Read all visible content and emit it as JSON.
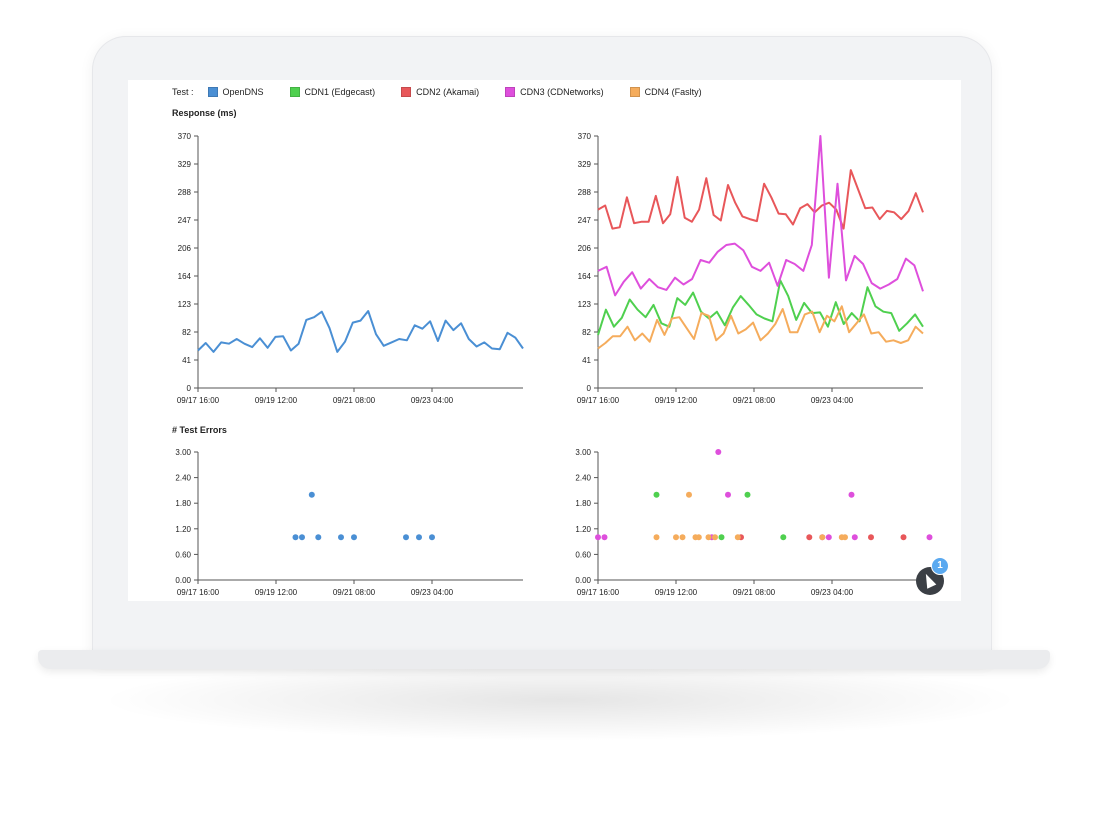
{
  "legend": {
    "label": "Test :",
    "items": [
      {
        "name": "OpenDNS",
        "color": "#4a8fd4"
      },
      {
        "name": "CDN1 (Edgecast)",
        "color": "#4fd04f"
      },
      {
        "name": "CDN2 (Akamai)",
        "color": "#e8575a"
      },
      {
        "name": "CDN3 (CDNetworks)",
        "color": "#de4fdc"
      },
      {
        "name": "CDN4 (Faslty)",
        "color": "#f5ac5c"
      }
    ]
  },
  "sections": {
    "response_title": "Response (ms)",
    "errors_title": "# Test Errors"
  },
  "notification_badge": "1",
  "chart_data": [
    {
      "type": "line",
      "title": "Response (ms)",
      "ylim": [
        0,
        370
      ],
      "yticks": [
        "0",
        "41",
        "82",
        "123",
        "164",
        "206",
        "247",
        "288",
        "329",
        "370"
      ],
      "xticks": [
        "09/17 16:00",
        "09/19 12:00",
        "09/21 08:00",
        "09/23 04:00"
      ],
      "grid": false,
      "series": [
        {
          "name": "OpenDNS",
          "color": "#4a8fd4",
          "values": [
            55,
            66,
            53,
            67,
            65,
            72,
            65,
            60,
            73,
            59,
            75,
            76,
            55,
            65,
            100,
            104,
            112,
            88,
            53,
            68,
            96,
            99,
            113,
            79,
            62,
            67,
            72,
            70,
            92,
            87,
            98,
            69,
            99,
            85,
            95,
            72,
            61,
            67,
            58,
            57,
            81,
            74,
            58
          ]
        }
      ]
    },
    {
      "type": "line",
      "title": "",
      "ylim": [
        0,
        370
      ],
      "yticks": [
        "0",
        "41",
        "82",
        "123",
        "164",
        "206",
        "247",
        "288",
        "329",
        "370"
      ],
      "xticks": [
        "09/17 16:00",
        "09/19 12:00",
        "09/21 08:00",
        "09/23 04:00"
      ],
      "grid": false,
      "series": [
        {
          "name": "CDN1 (Edgecast)",
          "color": "#4fd04f",
          "values": [
            78,
            115,
            90,
            103,
            130,
            115,
            104,
            122,
            95,
            90,
            132,
            122,
            140,
            112,
            102,
            112,
            92,
            118,
            135,
            122,
            108,
            102,
            98,
            158,
            135,
            100,
            125,
            110,
            111,
            90,
            126,
            94,
            110,
            98,
            148,
            120,
            112,
            110,
            84,
            95,
            108,
            90
          ]
        },
        {
          "name": "CDN2 (Akamai)",
          "color": "#e8575a",
          "values": [
            262,
            268,
            234,
            236,
            280,
            242,
            244,
            244,
            282,
            242,
            255,
            310,
            250,
            244,
            262,
            308,
            254,
            246,
            298,
            272,
            252,
            248,
            245,
            300,
            280,
            256,
            255,
            240,
            264,
            270,
            258,
            268,
            272,
            262,
            234,
            320,
            292,
            264,
            265,
            248,
            260,
            258,
            248,
            260,
            286,
            258
          ]
        },
        {
          "name": "CDN3 (CDNetworks)",
          "color": "#de4fdc",
          "values": [
            172,
            178,
            136,
            156,
            170,
            146,
            160,
            148,
            144,
            162,
            152,
            160,
            188,
            184,
            200,
            210,
            212,
            202,
            178,
            172,
            184,
            150,
            188,
            182,
            172,
            210,
            370,
            162,
            300,
            158,
            194,
            182,
            154,
            146,
            152,
            160,
            190,
            180,
            142
          ]
        },
        {
          "name": "CDN4 (Faslty)",
          "color": "#f5ac5c",
          "values": [
            58,
            66,
            76,
            76,
            90,
            70,
            80,
            68,
            100,
            78,
            102,
            104,
            88,
            72,
            110,
            106,
            70,
            80,
            106,
            80,
            86,
            96,
            70,
            80,
            94,
            116,
            82,
            82,
            108,
            112,
            82,
            106,
            98,
            120,
            82,
            95,
            108,
            80,
            82,
            68,
            70,
            66,
            70,
            90,
            80
          ]
        }
      ]
    },
    {
      "type": "scatter",
      "title": "# Test Errors",
      "ylim": [
        0,
        3
      ],
      "yticks": [
        "0.00",
        "0.60",
        "1.20",
        "1.80",
        "2.40",
        "3.00"
      ],
      "xticks": [
        "09/17 16:00",
        "09/19 12:00",
        "09/21 08:00",
        "09/23 04:00"
      ],
      "xrange": [
        0,
        100
      ],
      "grid": false,
      "series": [
        {
          "name": "OpenDNS",
          "color": "#4a8fd4",
          "points": [
            [
              30,
              1
            ],
            [
              32,
              1
            ],
            [
              35,
              2
            ],
            [
              37,
              1
            ],
            [
              44,
              1
            ],
            [
              48,
              1
            ],
            [
              64,
              1
            ],
            [
              68,
              1
            ],
            [
              72,
              1
            ]
          ]
        }
      ]
    },
    {
      "type": "scatter",
      "title": "",
      "ylim": [
        0,
        3
      ],
      "yticks": [
        "0.00",
        "0.60",
        "1.20",
        "1.80",
        "2.40",
        "3.00"
      ],
      "xticks": [
        "09/17 16:00",
        "09/19 12:00",
        "09/21 08:00",
        "09/23 04:00"
      ],
      "xrange": [
        0,
        100
      ],
      "grid": false,
      "series": [
        {
          "name": "CDN1 (Edgecast)",
          "color": "#4fd04f",
          "points": [
            [
              18,
              2
            ],
            [
              38,
              1
            ],
            [
              46,
              2
            ],
            [
              57,
              1
            ]
          ]
        },
        {
          "name": "CDN2 (Akamai)",
          "color": "#e8575a",
          "points": [
            [
              44,
              1
            ],
            [
              65,
              1
            ],
            [
              84,
              1
            ],
            [
              94,
              1
            ]
          ]
        },
        {
          "name": "CDN3 (CDNetworks)",
          "color": "#de4fdc",
          "points": [
            [
              0,
              1
            ],
            [
              2,
              1
            ],
            [
              35,
              1
            ],
            [
              37,
              3
            ],
            [
              40,
              2
            ],
            [
              69,
              1
            ],
            [
              71,
              1
            ],
            [
              78,
              2
            ],
            [
              79,
              1
            ],
            [
              102,
              1
            ]
          ]
        },
        {
          "name": "CDN4 (Faslty)",
          "color": "#f5ac5c",
          "points": [
            [
              18,
              1
            ],
            [
              24,
              1
            ],
            [
              26,
              1
            ],
            [
              28,
              2
            ],
            [
              30,
              1
            ],
            [
              31,
              1
            ],
            [
              34,
              1
            ],
            [
              36,
              1
            ],
            [
              43,
              1
            ],
            [
              69,
              1
            ],
            [
              75,
              1
            ],
            [
              76,
              1
            ]
          ]
        }
      ]
    }
  ]
}
